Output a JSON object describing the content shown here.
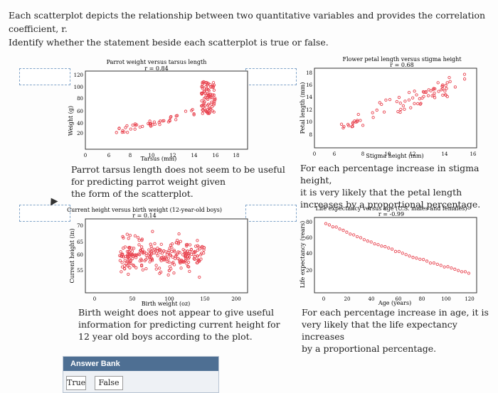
{
  "prompt": {
    "line1": "Each scatterplot depicts the relationship between two quantitative variables and provides the correlation coefficient, r.",
    "line2": "Identify whether the statement beside each scatterplot is true or false."
  },
  "colors": {
    "dot": "#e8434f",
    "accent": "#4e6f93"
  },
  "plots": [
    {
      "title": "Parrot weight versus tarsus length",
      "r_label": "r = 0.84",
      "xlabel": "Tarsus (mm)",
      "ylabel": "Weight (g)",
      "xticks": [
        "0",
        "6",
        "8",
        "10",
        "12",
        "14",
        "16",
        "18"
      ],
      "yticks": [
        "120",
        "100",
        "80",
        "60",
        "40",
        "20"
      ],
      "statement": [
        "Parrot tarsus length does not seem to be useful",
        "for predicting parrot weight given",
        "the form of the scatterplot."
      ]
    },
    {
      "title": "Flower petal length versus stigma height",
      "r_label": "r = 0.68",
      "xlabel": "Stigma height (mm)",
      "ylabel": "Petal length (mm)",
      "xticks": [
        "0",
        "6",
        "8",
        "10",
        "12",
        "14",
        "16"
      ],
      "yticks": [
        "18",
        "16",
        "14",
        "12",
        "10",
        "8"
      ],
      "statement": [
        "For each percentage increase in stigma height,",
        "it is very likely that the petal length",
        "increases by a proportional percentage."
      ]
    },
    {
      "title": "Current height versus birth weight (12-year-old boys)",
      "r_label": "r = 0.14",
      "xlabel": "Birth weight (oz)",
      "ylabel": "Current height (in)",
      "xticks": [
        "0",
        "50",
        "100",
        "150",
        "200"
      ],
      "yticks": [
        "70",
        "65",
        "60",
        "55"
      ],
      "statement": [
        "Birth weight does not appear to give useful",
        "information for predicting current height for",
        "12 year old boys according to the plot."
      ]
    },
    {
      "title": "Life expectancy versus age (U.S. males and females)",
      "r_label": "r = -0.99",
      "xlabel": "Age (years)",
      "ylabel": "Life expectancy (years)",
      "xticks": [
        "0",
        "20",
        "40",
        "60",
        "80",
        "100",
        "120"
      ],
      "yticks": [
        "80",
        "60",
        "40",
        "20"
      ],
      "statement": [
        "For each percentage increase in age, it is",
        "very likely that the life expectancy increases",
        "by a proportional percentage."
      ]
    }
  ],
  "answer_bank": {
    "title": "Answer Bank",
    "options": [
      "True",
      "False"
    ]
  }
}
